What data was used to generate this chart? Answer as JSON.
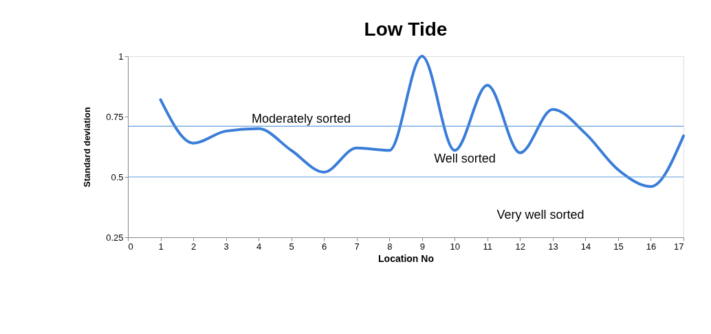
{
  "chart_data": {
    "type": "line",
    "title": "Low Tide",
    "xlabel": "Location No",
    "ylabel": "Standard deviation",
    "x": [
      1,
      2,
      3,
      4,
      5,
      6,
      7,
      8,
      9,
      10,
      11,
      12,
      13,
      14,
      15,
      16,
      17
    ],
    "series": [
      {
        "color": "#3a7dd8",
        "values": [
          0.82,
          0.64,
          0.69,
          0.7,
          0.61,
          0.52,
          0.62,
          0.61,
          1.0,
          0.61,
          0.88,
          0.6,
          0.78,
          0.68,
          0.53,
          0.46,
          0.67
        ]
      }
    ],
    "xlim": [
      0,
      17
    ],
    "xticks": [
      0,
      1,
      2,
      3,
      4,
      5,
      6,
      7,
      8,
      9,
      10,
      11,
      12,
      13,
      14,
      15,
      16,
      17
    ],
    "ylim": [
      0.25,
      1
    ],
    "yticks": [
      0.25,
      0.5,
      0.75,
      1
    ],
    "ref_lines": [
      {
        "axis": "y",
        "value": 0.71,
        "color": "#5b9bd5"
      },
      {
        "axis": "y",
        "value": 0.5,
        "color": "#5b9bd5"
      }
    ],
    "annotations": [
      "Moderately sorted",
      "Well sorted",
      "Very well sorted"
    ],
    "grid": false,
    "marker": "none",
    "line_style": "solid"
  }
}
